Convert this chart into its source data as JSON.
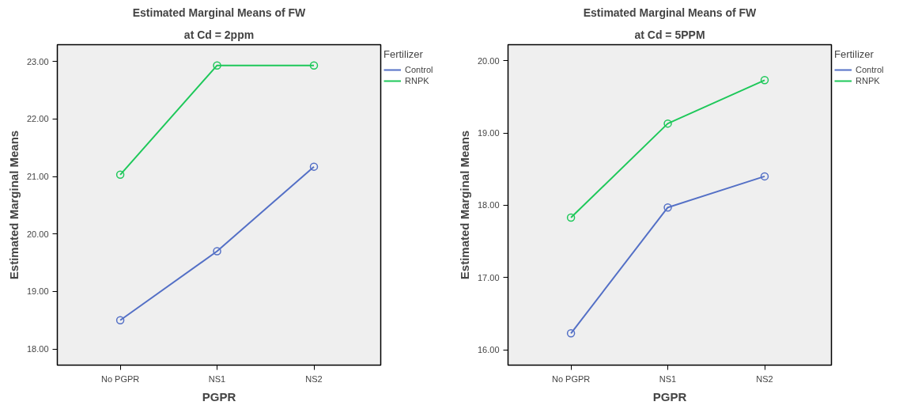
{
  "chart_data": [
    {
      "type": "line",
      "title": "Estimated Marginal Means of FW",
      "subtitle": "at Cd = 2ppm",
      "xlabel": "PGPR",
      "ylabel": "Estimated Marginal Means",
      "legend_title": "Fertilizer",
      "categories": [
        "No PGPR",
        "NS1",
        "NS2"
      ],
      "series": [
        {
          "name": "Control",
          "color": "#5470c6",
          "values": [
            18.5,
            19.7,
            21.17
          ]
        },
        {
          "name": "RNPK",
          "color": "#1ec85a",
          "values": [
            21.03,
            22.93,
            22.93
          ]
        }
      ],
      "ylim": [
        17.72,
        23.29
      ],
      "yticks": [
        {
          "value": 18,
          "label": "18.00"
        },
        {
          "value": 19,
          "label": "19.00"
        },
        {
          "value": 20,
          "label": "20.00"
        },
        {
          "value": 21,
          "label": "21.00"
        },
        {
          "value": 22,
          "label": "22.00"
        },
        {
          "value": 23,
          "label": "23.00"
        }
      ],
      "grid": false,
      "legend": "right",
      "marker": "circle",
      "line_style": "solid"
    },
    {
      "type": "line",
      "title": "Estimated Marginal Means of FW",
      "subtitle": "at Cd = 5PPM",
      "xlabel": "PGPR",
      "ylabel": "Estimated Marginal Means",
      "legend_title": "Fertilizer",
      "categories": [
        "No PGPR",
        "NS1",
        "NS2"
      ],
      "series": [
        {
          "name": "Control",
          "color": "#5470c6",
          "values": [
            16.23,
            17.97,
            18.4
          ]
        },
        {
          "name": "RNPK",
          "color": "#1ec85a",
          "values": [
            17.83,
            19.13,
            19.73
          ]
        }
      ],
      "ylim": [
        15.79,
        20.22
      ],
      "yticks": [
        {
          "value": 16,
          "label": "16.00"
        },
        {
          "value": 17,
          "label": "17.00"
        },
        {
          "value": 18,
          "label": "18.00"
        },
        {
          "value": 19,
          "label": "19.00"
        },
        {
          "value": 20,
          "label": "20.00"
        }
      ],
      "grid": false,
      "legend": "right",
      "marker": "circle",
      "line_style": "solid"
    }
  ]
}
